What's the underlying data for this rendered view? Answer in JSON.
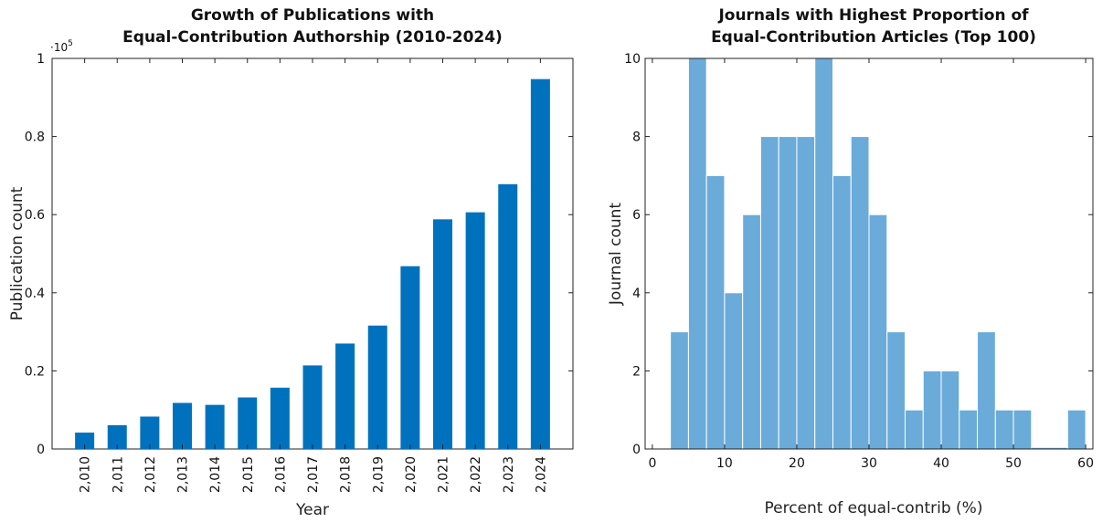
{
  "chart_data": [
    {
      "type": "bar",
      "title_lines": [
        "Growth of Publications with",
        "Equal-Contribution Authorship (2010-2024)"
      ],
      "xlabel": "Year",
      "ylabel": "Publication count",
      "scale_label": "·10",
      "scale_exponent": "5",
      "categories": [
        "2,010",
        "2,011",
        "2,012",
        "2,013",
        "2,014",
        "2,015",
        "2,016",
        "2,017",
        "2,018",
        "2,019",
        "2,020",
        "2,021",
        "2,022",
        "2,023",
        "2,024"
      ],
      "values": [
        0.042,
        0.061,
        0.083,
        0.118,
        0.113,
        0.132,
        0.157,
        0.214,
        0.27,
        0.316,
        0.468,
        0.588,
        0.606,
        0.678,
        0.947
      ],
      "ylim": [
        0,
        1
      ],
      "yticks": [
        0,
        0.2,
        0.4,
        0.6,
        0.8,
        1
      ],
      "ytick_labels": [
        "0",
        "0.2",
        "0.4",
        "0.6",
        "0.8",
        "1"
      ],
      "color": "#0072bd",
      "grid": false
    },
    {
      "type": "bar",
      "title_lines": [
        "Journals with Highest Proportion of",
        "Equal-Contribution Articles (Top 100)"
      ],
      "xlabel": "Percent of equal-contrib (%)",
      "ylabel": "Journal count",
      "bin_width": 2.5,
      "bins_start": [
        2.5,
        5,
        7.5,
        10,
        12.5,
        15,
        17.5,
        20,
        22.5,
        25,
        27.5,
        30,
        32.5,
        35,
        37.5,
        40,
        42.5,
        45,
        47.5,
        50,
        52.5,
        55,
        57.5
      ],
      "counts": [
        3,
        10,
        7,
        4,
        6,
        8,
        8,
        8,
        10,
        7,
        8,
        6,
        3,
        1,
        2,
        2,
        1,
        3,
        1,
        1,
        0,
        0,
        1
      ],
      "xlim": [
        -1,
        61
      ],
      "ylim": [
        0,
        10
      ],
      "xticks": [
        0,
        10,
        20,
        30,
        40,
        50,
        60
      ],
      "xtick_labels": [
        "0",
        "10",
        "20",
        "30",
        "40",
        "50",
        "60"
      ],
      "yticks": [
        0,
        2,
        4,
        6,
        8,
        10
      ],
      "ytick_labels": [
        "0",
        "2",
        "4",
        "6",
        "8",
        "10"
      ],
      "color": "#6aabda",
      "grid": false
    }
  ]
}
